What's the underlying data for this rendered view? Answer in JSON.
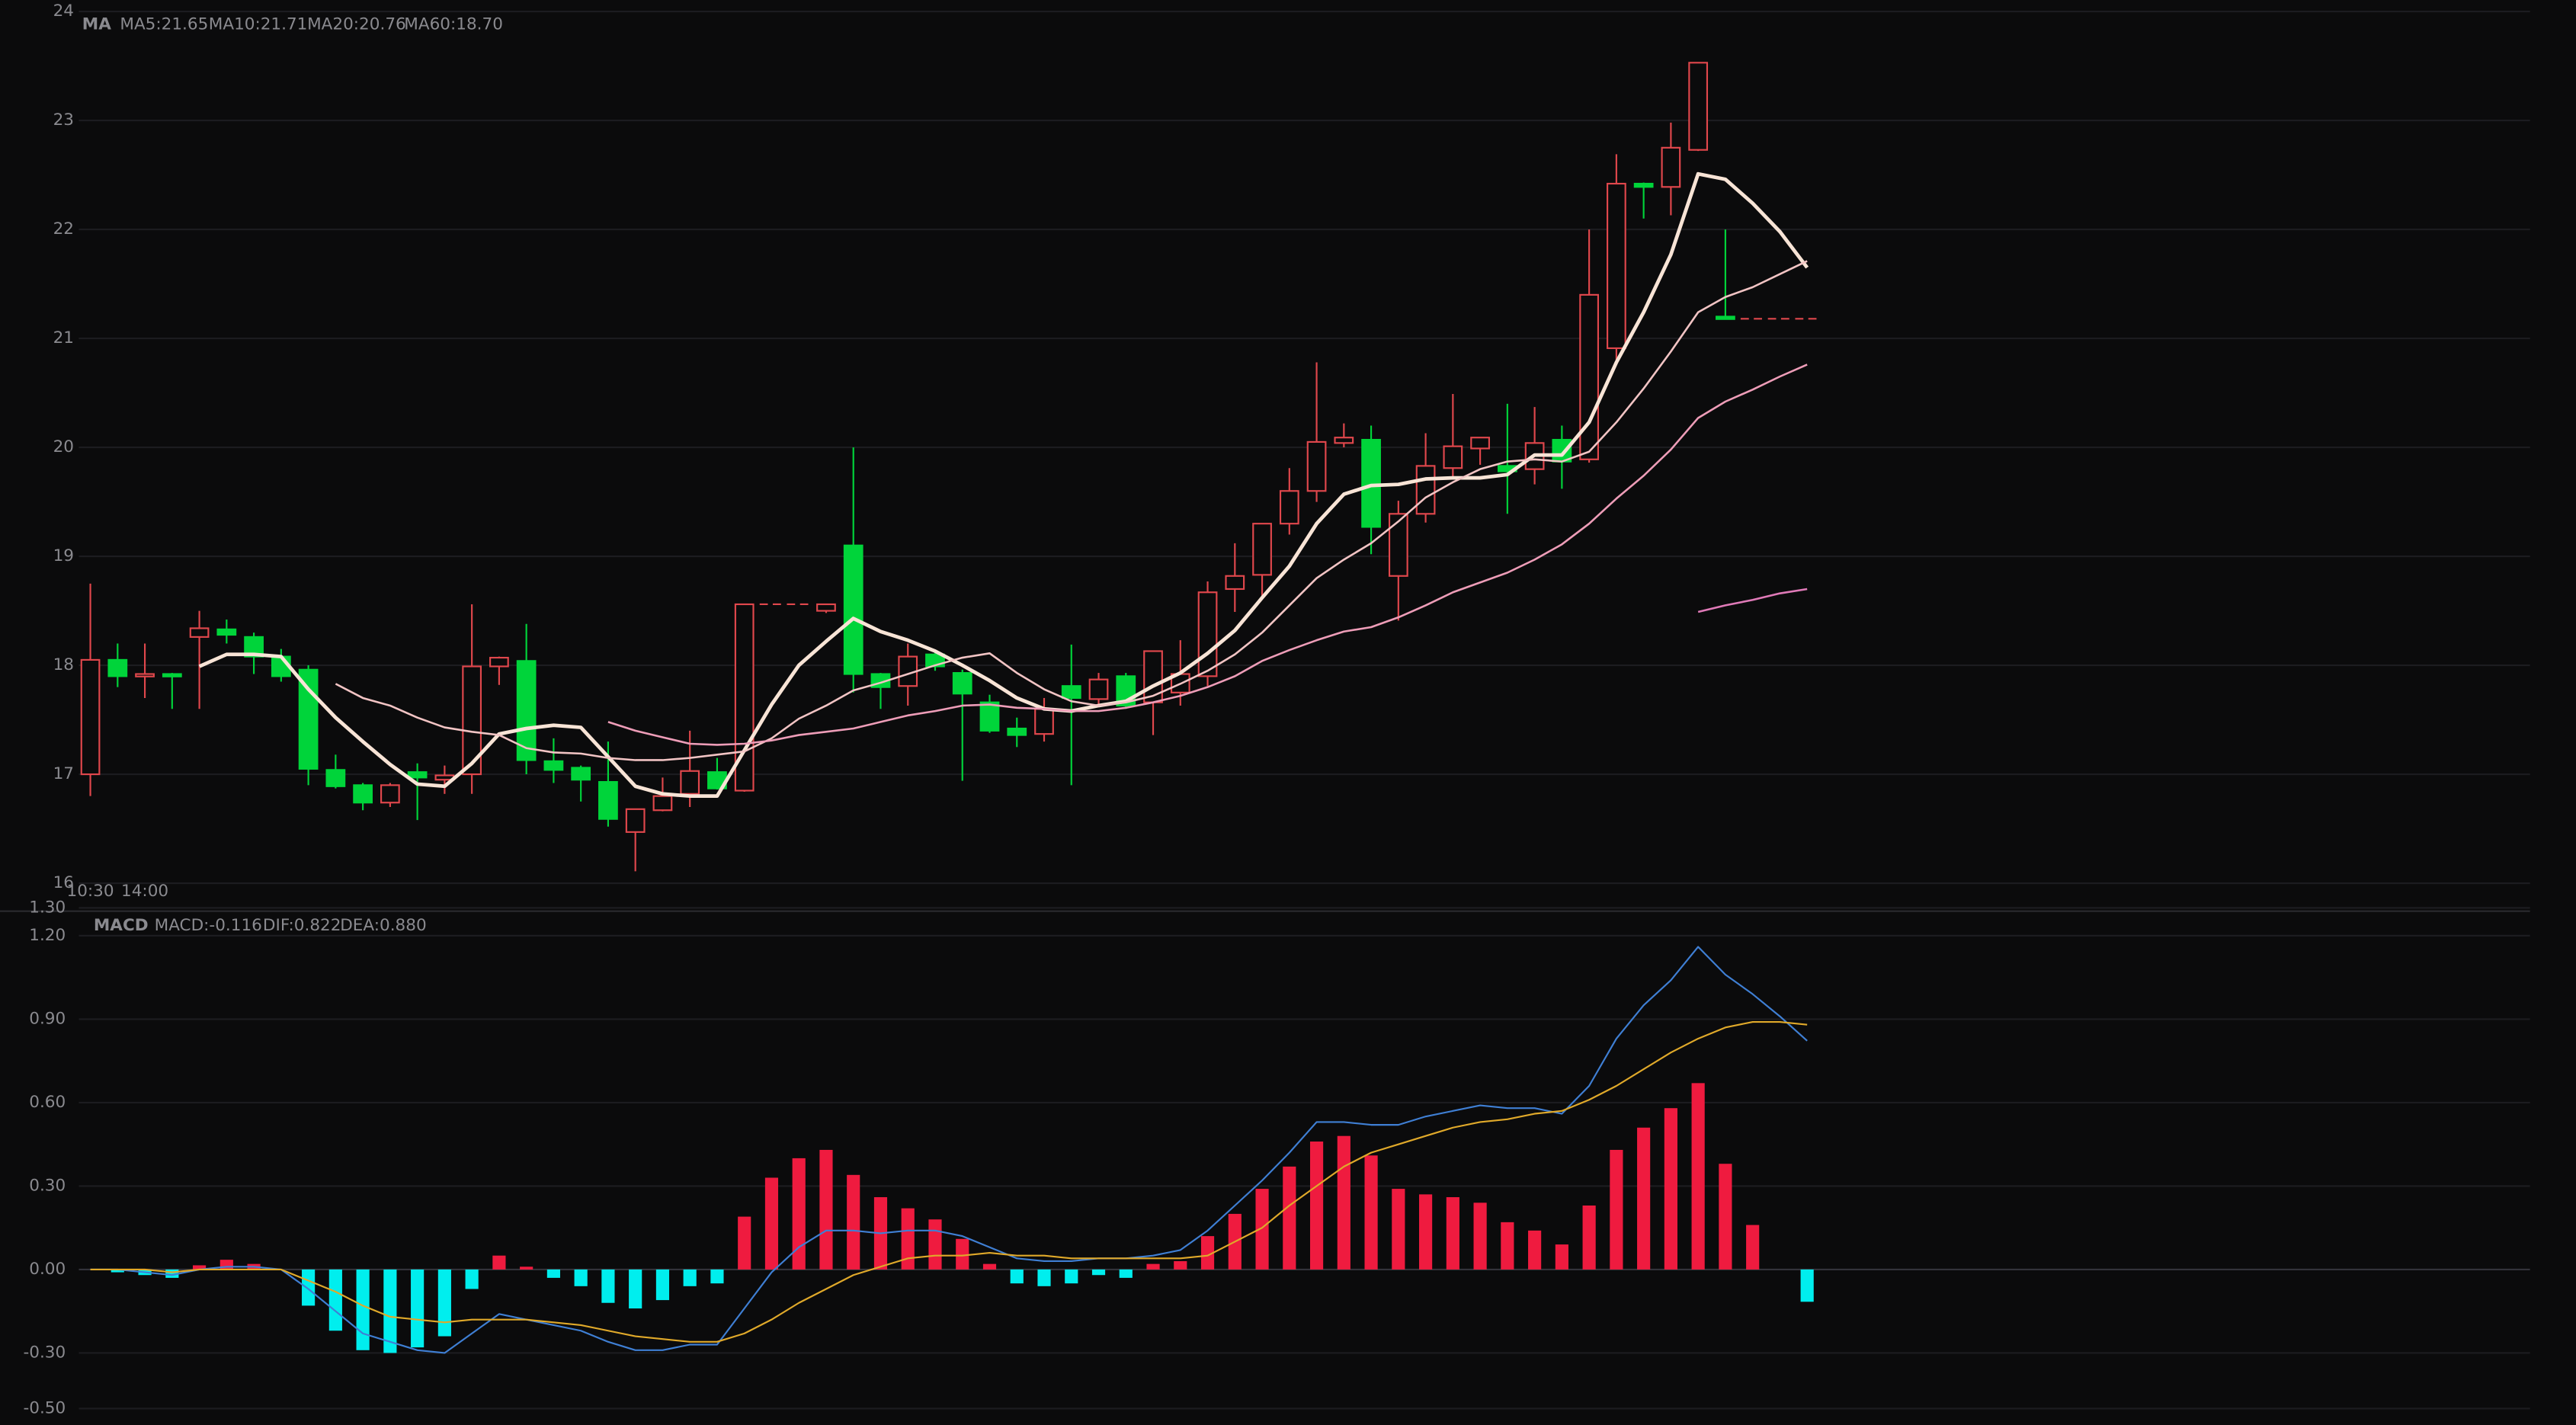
{
  "chart_data": [
    {
      "type": "candlestick",
      "legend_title": "MA",
      "x": [
        "10:30",
        null,
        "14:00",
        null,
        null,
        null,
        null,
        null,
        null,
        null,
        null,
        null,
        null,
        null,
        null,
        null,
        null,
        null,
        null,
        null,
        null,
        null,
        null,
        null,
        null,
        null,
        null,
        null,
        null,
        null,
        null,
        null,
        null,
        null,
        null,
        null,
        null,
        null,
        null,
        null,
        null,
        null,
        null,
        null,
        null,
        null,
        null,
        null,
        null,
        null,
        null,
        null,
        null,
        null,
        null,
        null,
        null,
        null,
        null,
        null,
        null,
        null,
        null,
        null
      ],
      "open": [
        17.0,
        18.05,
        17.9,
        17.92,
        18.26,
        18.33,
        18.26,
        18.08,
        17.96,
        17.04,
        16.9,
        16.74,
        17.02,
        16.95,
        17.0,
        17.99,
        18.04,
        17.12,
        17.06,
        16.93,
        16.47,
        16.67,
        16.82,
        17.02,
        16.85,
        18.56,
        18.56,
        18.5,
        19.1,
        17.92,
        17.81,
        18.1,
        17.93,
        17.66,
        17.42,
        17.37,
        17.81,
        17.69,
        17.9,
        17.66,
        17.75,
        17.9,
        18.7,
        18.83,
        19.3,
        19.6,
        20.04,
        20.07,
        18.82,
        19.39,
        19.81,
        19.99,
        19.83,
        19.8,
        20.07,
        19.89,
        20.91,
        22.42,
        22.39,
        22.73,
        21.2,
        21.18,
        21.18,
        21.18
      ],
      "high": [
        18.75,
        18.2,
        18.2,
        17.93,
        18.5,
        18.42,
        18.3,
        18.15,
        18.0,
        17.18,
        16.92,
        16.92,
        17.1,
        17.08,
        18.56,
        18.08,
        18.38,
        17.33,
        17.08,
        17.3,
        16.68,
        16.97,
        17.4,
        17.15,
        18.56,
        18.56,
        18.56,
        18.56,
        20.0,
        17.93,
        18.2,
        18.12,
        17.96,
        17.73,
        17.52,
        17.7,
        18.19,
        17.93,
        17.93,
        18.13,
        18.23,
        18.77,
        19.12,
        19.3,
        19.81,
        20.78,
        20.22,
        20.2,
        19.51,
        20.13,
        20.49,
        20.09,
        20.4,
        20.37,
        20.2,
        22.0,
        22.69,
        22.43,
        22.98,
        23.53,
        22.0,
        21.18,
        21.18,
        21.18
      ],
      "low": [
        16.8,
        17.8,
        17.7,
        17.6,
        17.6,
        18.2,
        17.92,
        17.85,
        16.9,
        16.87,
        16.67,
        16.7,
        16.58,
        16.82,
        16.82,
        17.82,
        17.0,
        16.92,
        16.75,
        16.52,
        16.11,
        16.66,
        16.7,
        16.86,
        16.84,
        18.56,
        18.56,
        18.48,
        17.75,
        17.6,
        17.63,
        17.95,
        16.94,
        17.38,
        17.25,
        17.3,
        16.9,
        17.63,
        17.6,
        17.36,
        17.63,
        17.81,
        18.49,
        18.63,
        19.2,
        19.5,
        20.0,
        19.02,
        18.41,
        19.31,
        19.72,
        19.84,
        19.39,
        19.66,
        19.62,
        19.86,
        20.8,
        22.1,
        22.13,
        22.72,
        21.18,
        21.18,
        21.18,
        21.18
      ],
      "close": [
        18.05,
        17.9,
        17.92,
        17.9,
        18.34,
        18.28,
        18.08,
        17.9,
        17.05,
        16.89,
        16.74,
        16.9,
        16.97,
        16.99,
        17.99,
        18.07,
        17.13,
        17.04,
        16.95,
        16.59,
        16.68,
        16.8,
        17.03,
        16.87,
        18.56,
        18.56,
        18.56,
        18.56,
        17.92,
        17.8,
        18.08,
        17.99,
        17.74,
        17.4,
        17.36,
        17.6,
        17.7,
        17.87,
        17.63,
        18.13,
        17.92,
        18.67,
        18.82,
        19.3,
        19.6,
        20.05,
        20.09,
        19.27,
        19.39,
        19.83,
        20.01,
        20.09,
        19.78,
        20.04,
        19.87,
        21.4,
        22.42,
        22.39,
        22.75,
        23.53,
        21.18,
        21.18,
        21.18,
        21.18
      ],
      "up_color": "#e0474c",
      "down_color": "#00d43a",
      "series": [
        {
          "name": "MA5:21.65",
          "color": "#f8e4d6",
          "values": [
            null,
            null,
            null,
            null,
            17.99,
            18.1,
            18.1,
            18.08,
            17.78,
            17.52,
            17.3,
            17.09,
            16.91,
            16.89,
            17.1,
            17.37,
            17.42,
            17.45,
            17.43,
            17.16,
            16.89,
            16.82,
            16.8,
            16.8,
            17.22,
            17.64,
            18.0,
            18.22,
            18.43,
            18.31,
            18.23,
            18.13,
            18.0,
            17.86,
            17.7,
            17.6,
            17.58,
            17.63,
            17.67,
            17.81,
            17.93,
            18.11,
            18.32,
            18.62,
            18.91,
            19.3,
            19.57,
            19.65,
            19.66,
            19.71,
            19.72,
            19.72,
            19.75,
            19.93,
            19.93,
            20.23,
            20.78,
            21.24,
            21.77,
            22.51,
            22.46,
            22.24,
            21.98,
            21.65
          ]
        },
        {
          "name": "MA10:21.71",
          "color": "#f2c4c4",
          "values": [
            null,
            null,
            null,
            null,
            null,
            null,
            null,
            null,
            null,
            17.83,
            17.7,
            17.63,
            17.52,
            17.43,
            17.39,
            17.36,
            17.24,
            17.2,
            17.19,
            17.15,
            17.13,
            17.13,
            17.15,
            17.18,
            17.21,
            17.33,
            17.51,
            17.63,
            17.77,
            17.84,
            17.92,
            18.0,
            18.07,
            18.11,
            17.93,
            17.78,
            17.67,
            17.63,
            17.66,
            17.72,
            17.83,
            17.95,
            18.1,
            18.3,
            18.55,
            18.8,
            18.97,
            19.12,
            19.32,
            19.54,
            19.68,
            19.8,
            19.87,
            19.89,
            19.87,
            19.96,
            20.23,
            20.54,
            20.88,
            21.24,
            21.38,
            21.47,
            21.59,
            21.71
          ]
        },
        {
          "name": "MA20:20.76",
          "color": "#ee9db8",
          "values": [
            null,
            null,
            null,
            null,
            null,
            null,
            null,
            null,
            null,
            null,
            null,
            null,
            null,
            null,
            null,
            null,
            null,
            null,
            null,
            17.48,
            17.4,
            17.34,
            17.28,
            17.27,
            17.28,
            17.31,
            17.36,
            17.39,
            17.42,
            17.48,
            17.54,
            17.58,
            17.63,
            17.64,
            17.61,
            17.6,
            17.58,
            17.58,
            17.61,
            17.66,
            17.72,
            17.8,
            17.9,
            18.04,
            18.14,
            18.23,
            18.31,
            18.35,
            18.44,
            18.55,
            18.67,
            18.76,
            18.85,
            18.97,
            19.11,
            19.3,
            19.53,
            19.74,
            19.98,
            20.27,
            20.42,
            20.53,
            20.65,
            20.76
          ]
        },
        {
          "name": "MA60:18.70",
          "color": "#e07ab8",
          "values": [
            null,
            null,
            null,
            null,
            null,
            null,
            null,
            null,
            null,
            null,
            null,
            null,
            null,
            null,
            null,
            null,
            null,
            null,
            null,
            null,
            null,
            null,
            null,
            null,
            null,
            null,
            null,
            null,
            null,
            null,
            null,
            null,
            null,
            null,
            null,
            null,
            null,
            null,
            null,
            null,
            null,
            null,
            null,
            null,
            null,
            null,
            null,
            null,
            null,
            null,
            null,
            null,
            null,
            null,
            null,
            null,
            null,
            null,
            null,
            18.49,
            18.55,
            18.6,
            18.66,
            18.7
          ]
        }
      ],
      "ylim": [
        16,
        24
      ],
      "yticks": [
        16,
        17,
        18,
        19,
        20,
        21,
        22,
        23,
        24
      ],
      "grid": true
    },
    {
      "type": "macd",
      "legend_title": "MACD",
      "up_color": "#ef1b3f",
      "down_color": "#00eeee",
      "series": [
        {
          "name": "MACD:-0.116",
          "kind": "bar",
          "color": "#00e5e5",
          "values": [
            null,
            -0.01,
            -0.02,
            -0.03,
            0.015,
            0.035,
            0.02,
            null,
            -0.13,
            -0.22,
            -0.29,
            -0.3,
            -0.28,
            -0.24,
            -0.07,
            0.05,
            0.01,
            -0.03,
            -0.06,
            -0.12,
            -0.14,
            -0.11,
            -0.06,
            -0.05,
            0.19,
            0.33,
            0.4,
            0.43,
            0.34,
            0.26,
            0.22,
            0.18,
            0.11,
            0.02,
            -0.05,
            -0.06,
            -0.05,
            -0.02,
            -0.03,
            0.02,
            0.03,
            0.12,
            0.2,
            0.29,
            0.37,
            0.46,
            0.48,
            0.41,
            0.29,
            0.27,
            0.26,
            0.24,
            0.17,
            0.14,
            0.09,
            0.23,
            0.43,
            0.51,
            0.58,
            0.67,
            0.38,
            0.16,
            null,
            -0.116
          ]
        },
        {
          "name": "DIF:0.822",
          "kind": "line",
          "color": "#3f7fd4",
          "values": [
            0,
            0,
            -0.01,
            -0.02,
            0,
            0.01,
            0.01,
            0,
            -0.07,
            -0.15,
            -0.23,
            -0.26,
            -0.29,
            -0.3,
            -0.23,
            -0.16,
            -0.18,
            -0.2,
            -0.22,
            -0.26,
            -0.29,
            -0.29,
            -0.27,
            -0.27,
            -0.14,
            -0.01,
            0.08,
            0.14,
            0.14,
            0.13,
            0.14,
            0.14,
            0.12,
            0.08,
            0.04,
            0.03,
            0.03,
            0.04,
            0.04,
            0.05,
            0.07,
            0.14,
            0.23,
            0.32,
            0.42,
            0.53,
            0.53,
            0.52,
            0.52,
            0.55,
            0.57,
            0.59,
            0.58,
            0.58,
            0.56,
            0.66,
            0.83,
            0.95,
            1.04,
            1.16,
            1.06,
            0.99,
            0.91,
            0.822
          ]
        },
        {
          "name": "DEA:0.880",
          "kind": "line",
          "color": "#e0a92a",
          "values": [
            0,
            0,
            0,
            -0.01,
            0,
            0,
            0,
            0,
            -0.04,
            -0.08,
            -0.13,
            -0.17,
            -0.18,
            -0.19,
            -0.18,
            -0.18,
            -0.18,
            -0.19,
            -0.2,
            -0.22,
            -0.24,
            -0.25,
            -0.26,
            -0.26,
            -0.23,
            -0.18,
            -0.12,
            -0.07,
            -0.02,
            0.01,
            0.04,
            0.05,
            0.05,
            0.06,
            0.05,
            0.05,
            0.04,
            0.04,
            0.04,
            0.04,
            0.04,
            0.05,
            0.1,
            0.15,
            0.23,
            0.3,
            0.37,
            0.42,
            0.45,
            0.48,
            0.51,
            0.53,
            0.54,
            0.56,
            0.57,
            0.61,
            0.66,
            0.72,
            0.78,
            0.83,
            0.87,
            0.89,
            0.89,
            0.88
          ]
        }
      ],
      "ylim": [
        -0.5,
        1.3
      ],
      "yticks": [
        {
          "value": -0.5,
          "label": "-0.50"
        },
        {
          "value": -0.3,
          "label": "-0.30"
        },
        {
          "value": 0,
          "label": "0.00"
        },
        {
          "value": 0.3,
          "label": "0.30"
        },
        {
          "value": 0.6,
          "label": "0.60"
        },
        {
          "value": 0.9,
          "label": "0.90"
        },
        {
          "value": 1.2,
          "label": "1.20"
        },
        {
          "value": 1.3,
          "label": "1.30"
        }
      ],
      "grid": true
    }
  ]
}
